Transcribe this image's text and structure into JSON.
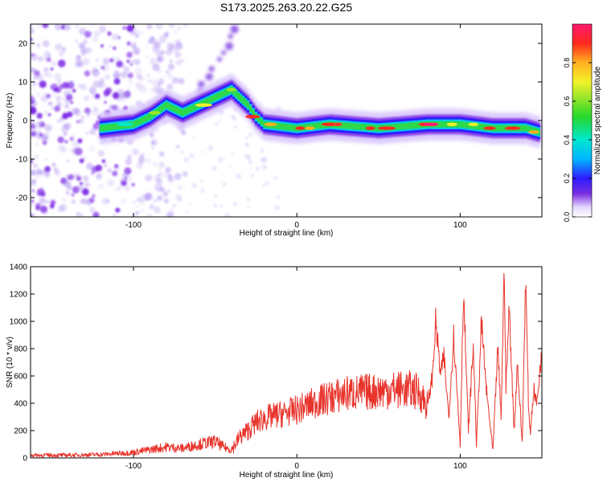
{
  "title": "S173.2025.263.20.22.G25",
  "chart_data": [
    {
      "type": "heatmap",
      "name": "spectrogram",
      "xlabel": "Height of straight line (km)",
      "ylabel": "Frequency (Hz)",
      "xlim": [
        -163,
        150
      ],
      "ylim": [
        -25,
        25
      ],
      "xticks": [
        -100,
        0,
        100
      ],
      "xtick_labels": [
        "-100",
        "0",
        "100"
      ],
      "yticks": [
        -20,
        -10,
        0,
        10,
        20
      ],
      "ytick_labels": [
        "-20",
        "-10",
        "0",
        "10",
        "20"
      ],
      "colorbar": {
        "label": "Normalized spectral amplitude",
        "range": [
          0,
          1
        ],
        "ticks": [
          0.0,
          0.2,
          0.4,
          0.6,
          0.8
        ],
        "tick_labels": [
          "0.0",
          "0.2",
          "0.4",
          "0.6",
          "0.8"
        ]
      },
      "ridge": [
        {
          "x": -120,
          "y": -2
        },
        {
          "x": -100,
          "y": -1
        },
        {
          "x": -90,
          "y": 1
        },
        {
          "x": -80,
          "y": 4
        },
        {
          "x": -70,
          "y": 2
        },
        {
          "x": -60,
          "y": 4
        },
        {
          "x": -50,
          "y": 6
        },
        {
          "x": -40,
          "y": 8
        },
        {
          "x": -30,
          "y": 4
        },
        {
          "x": -25,
          "y": 1
        },
        {
          "x": -20,
          "y": -1
        },
        {
          "x": 0,
          "y": -2
        },
        {
          "x": 20,
          "y": -1
        },
        {
          "x": 50,
          "y": -2
        },
        {
          "x": 80,
          "y": -1
        },
        {
          "x": 100,
          "y": -1
        },
        {
          "x": 120,
          "y": -2
        },
        {
          "x": 140,
          "y": -2
        },
        {
          "x": 148,
          "y": -3
        }
      ],
      "secondary_arm": [
        {
          "x": -60,
          "y": 8
        },
        {
          "x": -50,
          "y": 14
        },
        {
          "x": -40,
          "y": 22
        },
        {
          "x": -37,
          "y": 24
        }
      ]
    },
    {
      "type": "line",
      "name": "snr",
      "xlabel": "Height of straight line (km)",
      "ylabel": "SNR (10 * v/v)",
      "xlim": [
        -163,
        150
      ],
      "ylim": [
        0,
        1400
      ],
      "xticks": [
        -100,
        0,
        100
      ],
      "xtick_labels": [
        "-100",
        "0",
        "100"
      ],
      "yticks": [
        0,
        200,
        400,
        600,
        800,
        1000,
        1200,
        1400
      ],
      "ytick_labels": [
        "0",
        "200",
        "400",
        "600",
        "800",
        "1000",
        "1200",
        "1400"
      ],
      "color": "#e8332b",
      "series": [
        {
          "name": "SNR",
          "x": [
            -163,
            -140,
            -120,
            -100,
            -90,
            -80,
            -70,
            -60,
            -50,
            -45,
            -40,
            -35,
            -30,
            -25,
            -20,
            -10,
            0,
            10,
            20,
            30,
            40,
            50,
            60,
            70,
            75,
            80,
            83,
            85,
            88,
            90,
            93,
            96,
            100,
            102,
            105,
            108,
            110,
            113,
            116,
            120,
            123,
            125,
            127,
            128,
            130,
            133,
            135,
            138,
            140,
            142,
            143,
            145,
            147,
            150
          ],
          "y": [
            20,
            20,
            25,
            40,
            60,
            80,
            70,
            100,
            120,
            80,
            60,
            150,
            200,
            260,
            290,
            320,
            350,
            400,
            440,
            470,
            480,
            490,
            500,
            500,
            480,
            380,
            600,
            1000,
            600,
            750,
            300,
            900,
            100,
            1230,
            200,
            820,
            100,
            1000,
            500,
            50,
            800,
            300,
            1400,
            500,
            1100,
            200,
            700,
            100,
            1330,
            300,
            200,
            500,
            400,
            800
          ]
        }
      ]
    }
  ],
  "colors": {
    "snr_line": "#e8332b",
    "axis": "#000000",
    "background": "#ffffff"
  }
}
